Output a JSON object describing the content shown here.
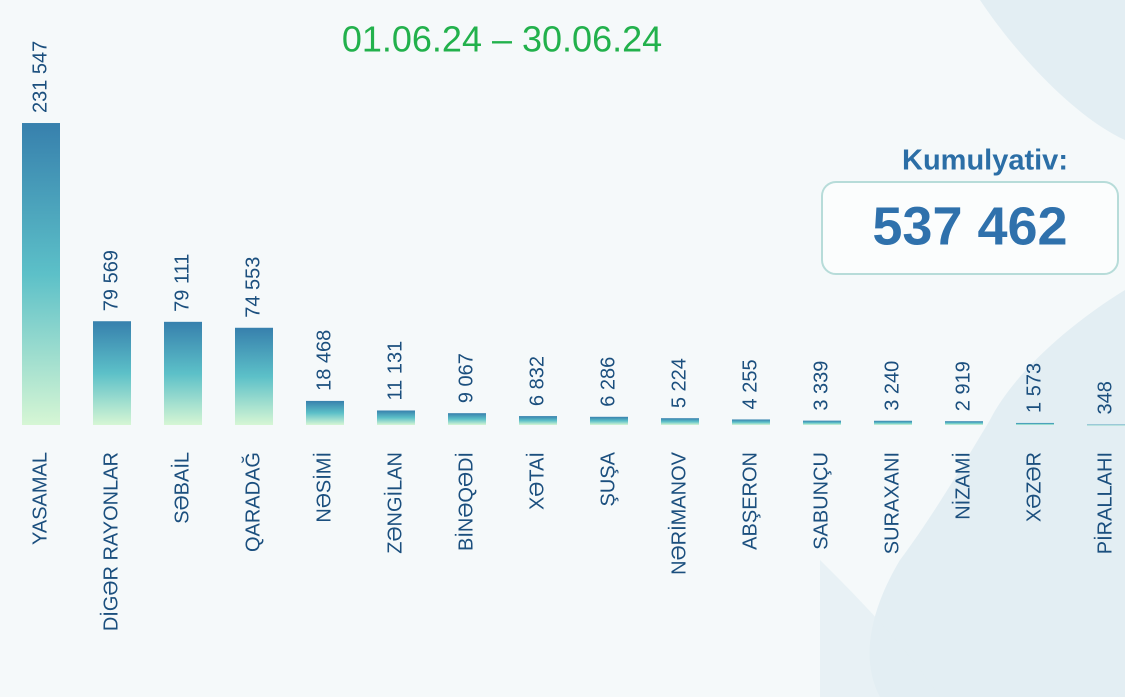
{
  "chart_data": {
    "type": "bar",
    "title": "01.06.24 – 30.06.24",
    "total_label": "Kumulyativ:",
    "total": "537 462",
    "categories": [
      "YASAMAL",
      "DİGƏR RAYONLAR",
      "SƏBAİL",
      "QARADAĞ",
      "NƏSİMİ",
      "ZƏNGİLAN",
      "BİNƏQƏDİ",
      "XƏTAİ",
      "ŞUŞA",
      "NƏRİMANOV",
      "ABŞERON",
      "SABUNÇU",
      "SURAXANI",
      "NİZAMİ",
      "XƏZƏR",
      "PİRALLAHI"
    ],
    "values": [
      231547,
      79569,
      79111,
      74553,
      18468,
      11131,
      9067,
      6832,
      6286,
      5224,
      4255,
      3339,
      3240,
      2919,
      1573,
      348
    ],
    "value_labels": [
      "231 547",
      "79 569",
      "79 111",
      "74 553",
      "18 468",
      "11 131",
      "9 067",
      "6 832",
      "6 286",
      "5 224",
      "4 255",
      "3 339",
      "3 240",
      "2 919",
      "1 573",
      "348"
    ],
    "color": "#3a85b0",
    "ylim": [
      0,
      240000
    ]
  }
}
